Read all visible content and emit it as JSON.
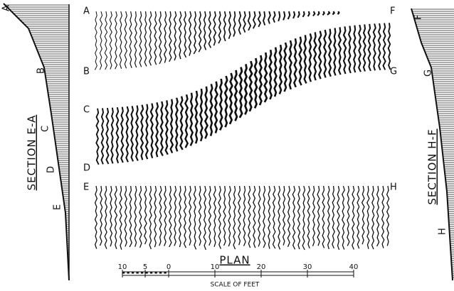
{
  "plan": {
    "title": "PLAN",
    "points": [
      "A",
      "B",
      "C",
      "D",
      "E",
      "F",
      "G",
      "H"
    ]
  },
  "section_left": {
    "title": "SECTION E-A",
    "points": [
      "A",
      "B",
      "C",
      "D",
      "E"
    ]
  },
  "section_right": {
    "title": "SECTION H-F",
    "points": [
      "F",
      "G",
      "H"
    ]
  },
  "scale": {
    "title": "SCALE OF FEET",
    "ticks": [
      "10",
      "5",
      "0",
      "10",
      "20",
      "30",
      "40"
    ]
  }
}
